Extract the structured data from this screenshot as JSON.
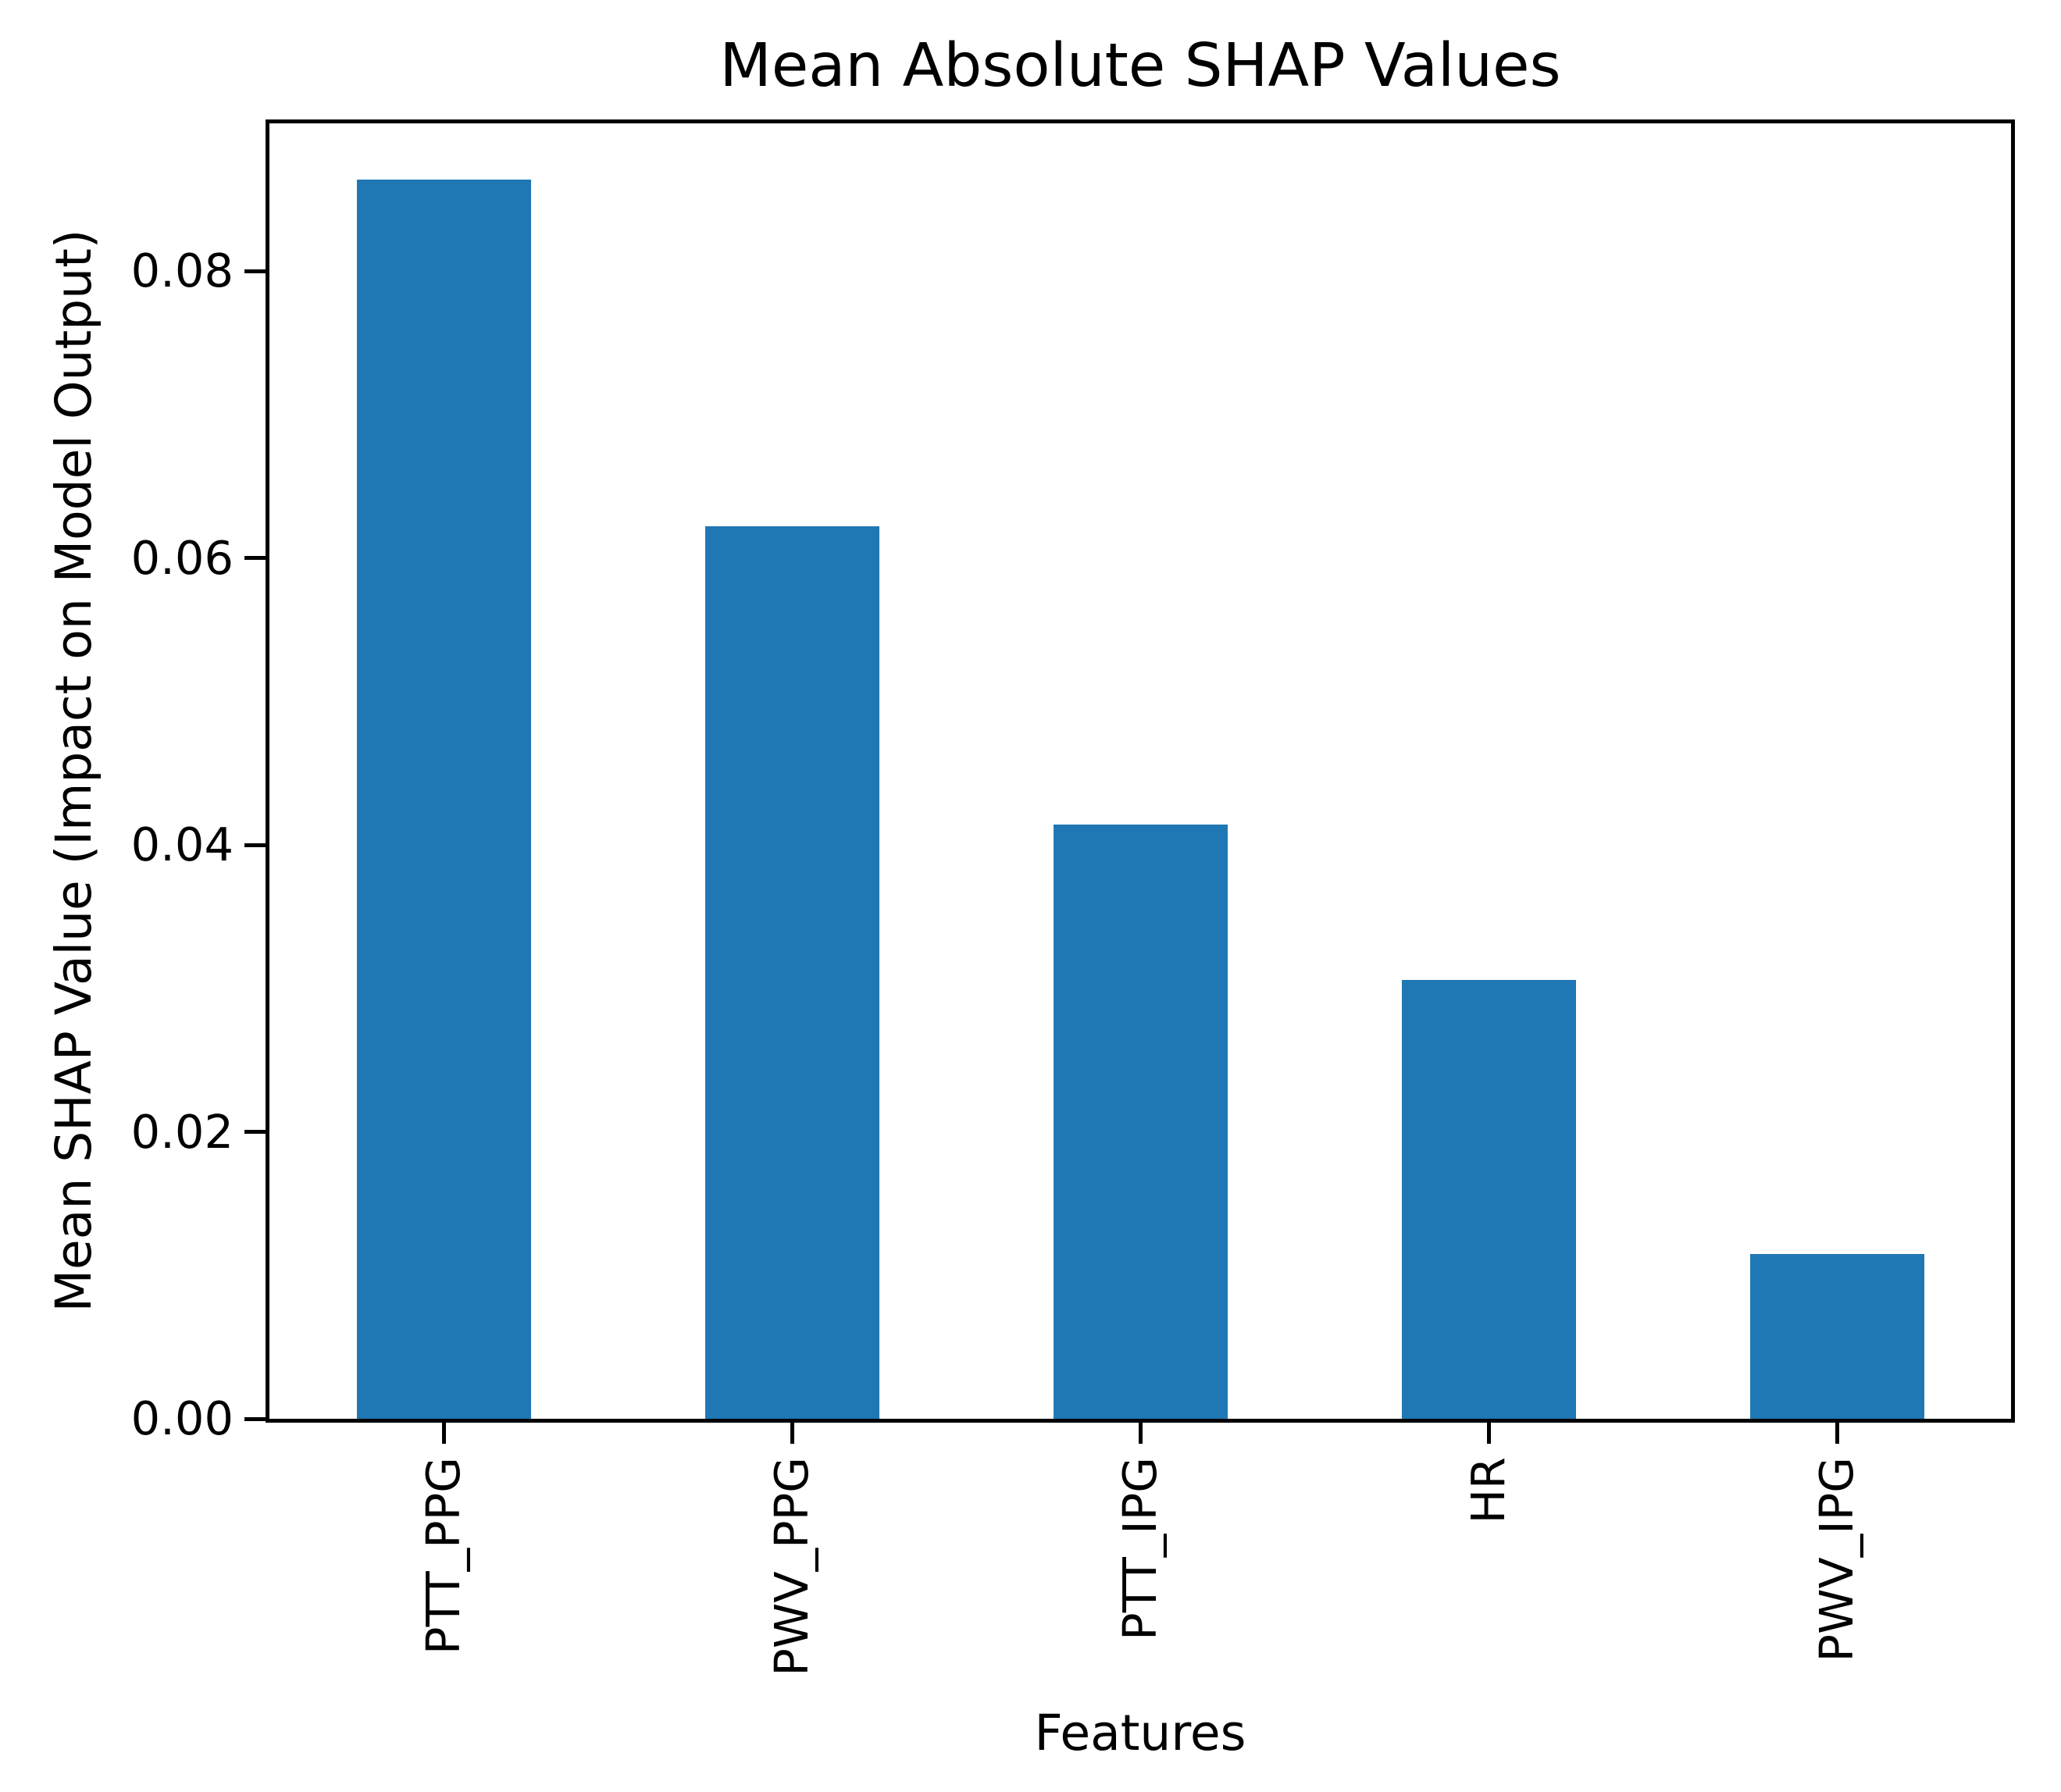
{
  "chart_data": {
    "type": "bar",
    "title": "Mean Absolute SHAP Values",
    "xlabel": "Features",
    "ylabel": "Mean SHAP Value (Impact on Model Output)",
    "categories": [
      "PTT_PPG",
      "PWV_PPG",
      "PTT_IPG",
      "HR",
      "PWV_IPG"
    ],
    "values": [
      0.0864,
      0.0622,
      0.0414,
      0.0306,
      0.0115
    ],
    "yticks": [
      0.0,
      0.02,
      0.04,
      0.06,
      0.08
    ],
    "ytick_labels": [
      "0.00",
      "0.02",
      "0.04",
      "0.06",
      "0.08"
    ],
    "ylim": [
      0,
      0.0903
    ],
    "bar_color": "#1f77b4",
    "axis_color": "#000000",
    "bar_width_fraction": 0.5,
    "grid": false,
    "legend": false
  }
}
